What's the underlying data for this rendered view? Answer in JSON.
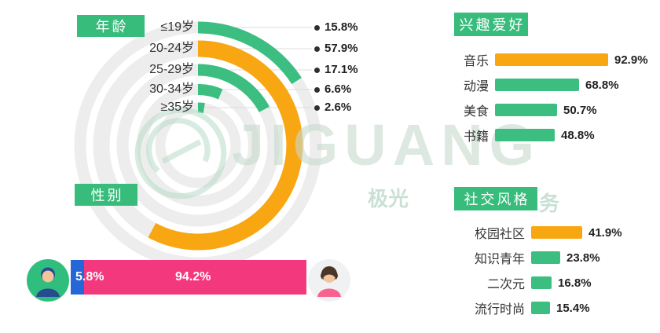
{
  "colors": {
    "orange": "#F8A611",
    "green": "#3CBE81",
    "pink": "#F4387D",
    "blue": "#2566D8",
    "ring_bg": "#EDEDED",
    "dot": "#2f2f2f"
  },
  "chart_data": [
    {
      "type": "radial-bar",
      "title": "年龄",
      "categories": [
        "≤19岁",
        "20-24岁",
        "25-29岁",
        "30-34岁",
        "≥35岁"
      ],
      "values": [
        15.8,
        57.9,
        17.1,
        6.6,
        2.6
      ],
      "labels": [
        "15.8%",
        "57.9%",
        "17.1%",
        "6.6%",
        "2.6%"
      ],
      "bar_colors": [
        "green",
        "orange",
        "green",
        "green",
        "green"
      ],
      "max": 100
    },
    {
      "type": "stacked-bar",
      "title": "性别",
      "segments": [
        {
          "name": "male",
          "value": 5.8,
          "label": "5.8%",
          "color": "blue"
        },
        {
          "name": "female",
          "value": 94.2,
          "label": "94.2%",
          "color": "pink"
        }
      ]
    },
    {
      "type": "bar",
      "title": "兴趣爱好",
      "items": [
        {
          "category": "音乐",
          "value": 92.9,
          "label": "92.9%",
          "color": "orange"
        },
        {
          "category": "动漫",
          "value": 68.8,
          "label": "68.8%",
          "color": "green"
        },
        {
          "category": "美食",
          "value": 50.7,
          "label": "50.7%",
          "color": "green"
        },
        {
          "category": "书籍",
          "value": 48.8,
          "label": "48.8%",
          "color": "green"
        }
      ]
    },
    {
      "type": "bar",
      "title": "社交风格",
      "items": [
        {
          "category": "校园社区",
          "value": 41.9,
          "label": "41.9%",
          "color": "orange"
        },
        {
          "category": "知识青年",
          "value": 23.8,
          "label": "23.8%",
          "color": "green"
        },
        {
          "category": "二次元",
          "value": 16.8,
          "label": "16.8%",
          "color": "green"
        },
        {
          "category": "流行时尚",
          "value": 15.4,
          "label": "15.4%",
          "color": "green"
        }
      ]
    }
  ],
  "watermark": {
    "latin": "JIGUANG",
    "cn_left": "极光",
    "cn_right": "务"
  }
}
